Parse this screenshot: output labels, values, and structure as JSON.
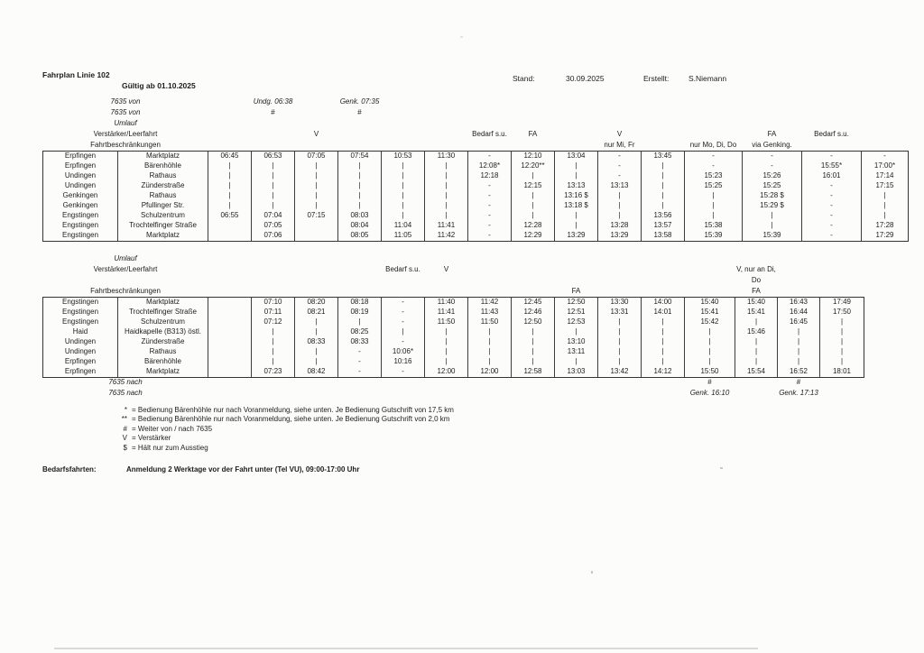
{
  "header": {
    "title": "Fahrplan Linie 102",
    "valid": "Gültig ab 01.10.2025",
    "stand_label": "Stand:",
    "stand_value": "30.09.2025",
    "created_label": "Erstellt:",
    "created_value": "S.Niemann"
  },
  "table1": {
    "meta_top": [
      {
        "label": "7635 von",
        "italic": true,
        "cells": [
          {
            "col": 1,
            "text": "Undg. 06:38",
            "italic": true
          },
          {
            "col": 3,
            "text": "Genk. 07:35",
            "italic": true
          }
        ]
      },
      {
        "label": "7635 von",
        "italic": true,
        "cells": [
          {
            "col": 1,
            "text": "#"
          },
          {
            "col": 3,
            "text": "#"
          }
        ]
      },
      {
        "label": "Umlauf",
        "italic": true,
        "cells": []
      },
      {
        "label": "Verstärker/Leerfahrt",
        "cells": [
          {
            "col": 2,
            "text": "V"
          },
          {
            "col": 6,
            "text": "Bedarf s.u."
          },
          {
            "col": 7,
            "text": "FA"
          },
          {
            "col": 9,
            "text": "V"
          },
          {
            "col": 12,
            "text": "FA"
          },
          {
            "col": 13,
            "text": "Bedarf s.u."
          }
        ]
      },
      {
        "label": "Fahrtbeschränkungen",
        "cells": [
          {
            "col": 9,
            "text": "nur Mi, Fr"
          },
          {
            "col": 11,
            "text": "nur Mo, Di, Do"
          },
          {
            "col": 12,
            "text": "via Genking."
          }
        ]
      }
    ],
    "rows": [
      {
        "ort": "Erpfingen",
        "stop": "Marktplatz",
        "times": [
          "06:45",
          "06:53",
          "07:05",
          "07:54",
          "10:53",
          "11:30",
          "-",
          "12:10",
          "13:04",
          "-",
          "13:45",
          "-",
          "-",
          "-",
          "-"
        ]
      },
      {
        "ort": "Erpfingen",
        "stop": "Bärenhöhle",
        "times": [
          "|",
          "|",
          "|",
          "|",
          "|",
          "|",
          "12:08*",
          "12:20**",
          "|",
          "-",
          "|",
          "-",
          "-",
          "15:55*",
          "17:00*"
        ]
      },
      {
        "ort": "Undingen",
        "stop": "Rathaus",
        "times": [
          "|",
          "|",
          "|",
          "|",
          "|",
          "|",
          "12:18",
          "|",
          "|",
          "-",
          "|",
          "15:23",
          "15:26",
          "16:01",
          "17:14"
        ]
      },
      {
        "ort": "Undingen",
        "stop": "Zünderstraße",
        "times": [
          "|",
          "|",
          "|",
          "|",
          "|",
          "|",
          "-",
          "12:15",
          "13:13",
          "13:13",
          "|",
          "15:25",
          "15:25",
          "-",
          "17:15"
        ]
      },
      {
        "ort": "Genkingen",
        "stop": "Rathaus",
        "times": [
          "|",
          "|",
          "|",
          "|",
          "|",
          "|",
          "-",
          "|",
          "13:16 $",
          "|",
          "|",
          "|",
          "15:28 $",
          "-",
          "|"
        ]
      },
      {
        "ort": "Genkingen",
        "stop": "Pfullinger Str.",
        "times": [
          "|",
          "|",
          "|",
          "|",
          "|",
          "|",
          "-",
          "|",
          "13:18 $",
          "|",
          "|",
          "|",
          "15:29 $",
          "-",
          "|"
        ]
      },
      {
        "ort": "Engstingen",
        "stop": "Schulzentrum",
        "times": [
          "06:55",
          "07:04",
          "07:15",
          "08:03",
          "|",
          "|",
          "-",
          "|",
          "|",
          "|",
          "13:56",
          "|",
          "|",
          "-",
          "|"
        ]
      },
      {
        "ort": "Engstingen",
        "stop": "Trochtelfinger Straße",
        "times": [
          "",
          "07:05",
          "",
          "08:04",
          "11:04",
          "11:41",
          "-",
          "12:28",
          "|",
          "13:28",
          "13:57",
          "15:38",
          "|",
          "-",
          "17:28"
        ]
      },
      {
        "ort": "Engstingen",
        "stop": "Marktplatz",
        "times": [
          "",
          "07:06",
          "",
          "08:05",
          "11:05",
          "11:42",
          "-",
          "12:29",
          "13:29",
          "13:29",
          "13:58",
          "15:39",
          "15:39",
          "-",
          "17:29"
        ]
      }
    ]
  },
  "table2": {
    "meta_top": [
      {
        "label": "Umlauf",
        "italic": true,
        "cells": []
      },
      {
        "label": "Verstärker/Leerfahrt",
        "cells": [
          {
            "col": 4,
            "text": "Bedarf s.u."
          },
          {
            "col": 5,
            "text": "V"
          },
          {
            "col": 12,
            "text": "V, nur an Di,"
          }
        ]
      },
      {
        "label": "",
        "cells": [
          {
            "col": 12,
            "text": "Do"
          }
        ]
      },
      {
        "label": "Fahrtbeschränkungen",
        "cells": [
          {
            "col": 8,
            "text": "FA"
          },
          {
            "col": 12,
            "text": "FA"
          }
        ]
      }
    ],
    "rows": [
      {
        "ort": "Engstingen",
        "stop": "Marktplatz",
        "times": [
          "",
          "07:10",
          "08:20",
          "08:18",
          "-",
          "11:40",
          "11:42",
          "12:45",
          "12:50",
          "13:30",
          "14:00",
          "15:40",
          "15:40",
          "16:43",
          "17:49"
        ]
      },
      {
        "ort": "Engstingen",
        "stop": "Trochtelfinger Straße",
        "times": [
          "",
          "07:11",
          "08:21",
          "08:19",
          "-",
          "11:41",
          "11:43",
          "12:46",
          "12:51",
          "13:31",
          "14:01",
          "15:41",
          "15:41",
          "16:44",
          "17:50"
        ]
      },
      {
        "ort": "Engstingen",
        "stop": "Schulzentrum",
        "times": [
          "",
          "07:12",
          "|",
          "|",
          "-",
          "11:50",
          "11:50",
          "12:50",
          "12:53",
          "|",
          "|",
          "15:42",
          "|",
          "16:45",
          "|"
        ]
      },
      {
        "ort": "Haid",
        "stop": "Haidkapelle (B313) östl.",
        "times": [
          "",
          "|",
          "|",
          "08:25",
          "|",
          "|",
          "|",
          "|",
          "|",
          "|",
          "|",
          "|",
          "15:46",
          "|",
          "|"
        ]
      },
      {
        "ort": "Undingen",
        "stop": "Zünderstraße",
        "times": [
          "",
          "|",
          "08:33",
          "08:33",
          "-",
          "|",
          "|",
          "|",
          "13:10",
          "|",
          "|",
          "|",
          "|",
          "|",
          "|"
        ]
      },
      {
        "ort": "Undingen",
        "stop": "Rathaus",
        "times": [
          "",
          "|",
          "|",
          "-",
          "10:06*",
          "|",
          "|",
          "|",
          "13:11",
          "|",
          "|",
          "|",
          "|",
          "|",
          "|"
        ]
      },
      {
        "ort": "Erpfingen",
        "stop": "Bärenhöhle",
        "times": [
          "",
          "|",
          "|",
          "-",
          "10:16",
          "|",
          "|",
          "|",
          "|",
          "|",
          "|",
          "|",
          "|",
          "|",
          "|"
        ]
      },
      {
        "ort": "Erpfingen",
        "stop": "Marktplatz",
        "times": [
          "",
          "07:23",
          "08:42",
          "-",
          "-",
          "12:00",
          "12:00",
          "12:58",
          "13:03",
          "13:42",
          "14:12",
          "15:50",
          "15:54",
          "16:52",
          "18:01"
        ]
      }
    ],
    "meta_bottom": [
      {
        "label": "7635 nach",
        "italic": true,
        "cells": [
          {
            "col": 11,
            "text": "#"
          },
          {
            "col": 13,
            "text": "#"
          }
        ]
      },
      {
        "label": "7635 nach",
        "italic": true,
        "cells": [
          {
            "col": 11,
            "text": "Genk. 16:10",
            "italic": true
          },
          {
            "col": 13,
            "text": "Genk. 17:13",
            "italic": true
          }
        ]
      }
    ]
  },
  "legend": {
    "items": [
      {
        "sym": "*",
        "text": "= Bedienung Bärenhöhle nur nach Voranmeldung, siehe unten. Je Bedienung Gutschrift von 17,5 km"
      },
      {
        "sym": "**",
        "text": "= Bedienung Bärenhöhle nur nach Voranmeldung, siehe unten. Je Bedienung Gutschrift von 2,0 km"
      },
      {
        "sym": "#",
        "text": "= Weiter von / nach 7635"
      },
      {
        "sym": "V",
        "text": "= Verstärker"
      },
      {
        "sym": "$",
        "text": "= Hält nur zum Ausstieg"
      }
    ]
  },
  "bedarf": {
    "label": "Bedarfsfahrten:",
    "text": "Anmeldung 2 Werktage vor der Fahrt unter (Tel VU), 09:00-17:00 Uhr"
  }
}
